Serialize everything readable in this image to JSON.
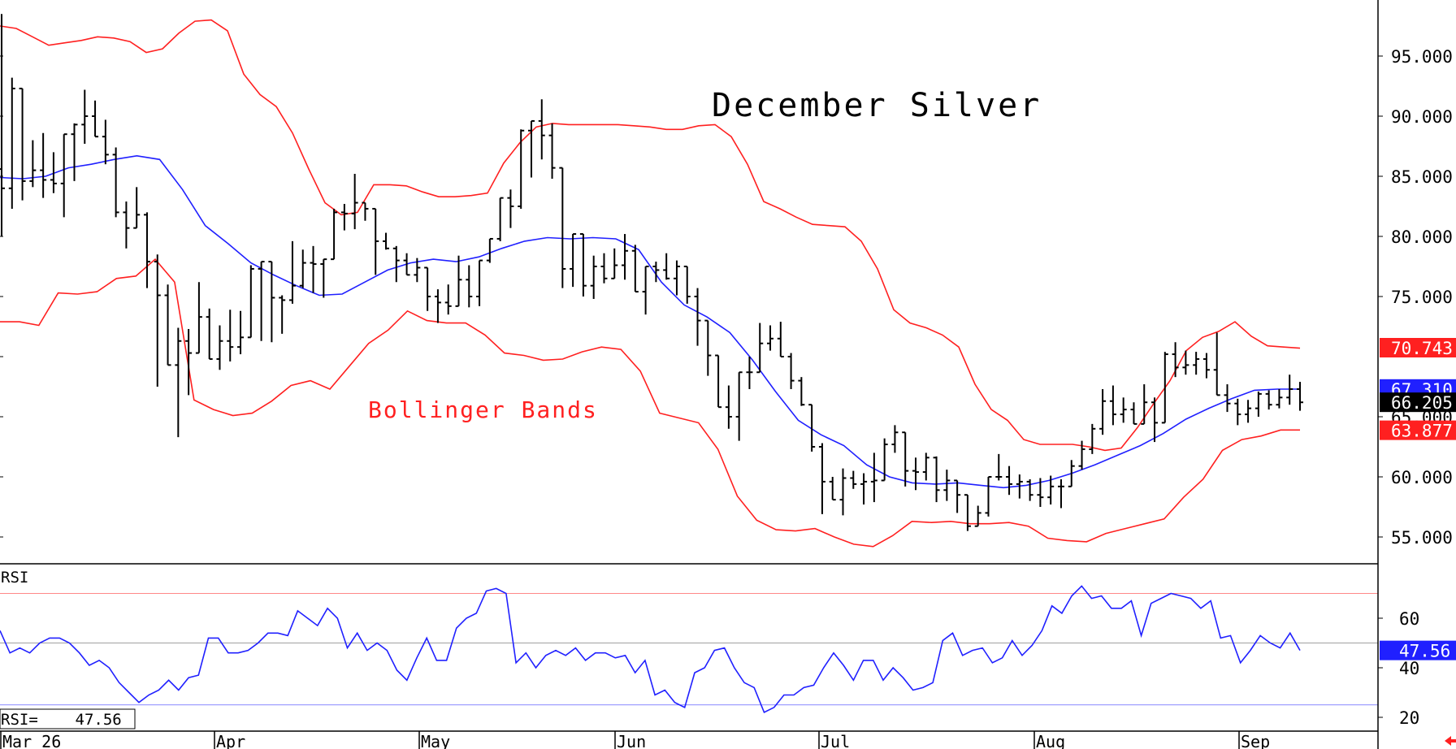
{
  "chart_data": [
    {
      "type": "ohlc",
      "title": "December Silver",
      "annotation": "Bollinger Bands",
      "ylim": [
        52.5,
        99.5
      ],
      "yticks": [
        "95.000",
        "90.000",
        "85.000",
        "80.000",
        "75.000",
        "65.000",
        "60.000",
        "55.000"
      ],
      "grid": false,
      "x_labels": [
        "Mar 26",
        "Apr",
        "May",
        "Jun",
        "Jul",
        "Aug",
        "Sep"
      ],
      "value_tags": [
        {
          "label": "70.743",
          "value": 70.743,
          "color": "#ff2020"
        },
        {
          "label": "67.310",
          "value": 67.31,
          "color": "#2020ff"
        },
        {
          "label": "66.205",
          "value": 66.205,
          "color": "#000000"
        },
        {
          "label": "63.877",
          "value": 63.877,
          "color": "#ff2020"
        }
      ],
      "bars": [
        [
          85.6,
          98.5,
          80.0,
          84.0
        ],
        [
          84.0,
          93.2,
          82.3,
          92.3
        ],
        [
          92.3,
          91.8,
          83.0,
          84.6
        ],
        [
          84.6,
          88.0,
          84.1,
          85.5
        ],
        [
          85.5,
          88.6,
          83.2,
          84.7
        ],
        [
          84.7,
          87.0,
          83.6,
          84.4
        ],
        [
          84.4,
          86.7,
          81.6,
          88.5
        ],
        [
          88.5,
          89.4,
          84.6,
          89.3
        ],
        [
          89.3,
          92.2,
          87.7,
          90.0
        ],
        [
          90.0,
          91.3,
          88.4,
          88.3
        ],
        [
          88.3,
          89.7,
          86.0,
          86.8
        ],
        [
          86.8,
          87.4,
          81.6,
          82.0
        ],
        [
          82.0,
          82.9,
          79.0,
          80.7
        ],
        [
          80.7,
          84.1,
          80.8,
          81.8
        ],
        [
          81.8,
          82.0,
          75.7,
          77.9
        ],
        [
          77.9,
          78.5,
          67.5,
          75.1
        ],
        [
          75.1,
          76.0,
          70.0,
          69.3
        ],
        [
          69.3,
          72.4,
          63.3,
          71.3
        ],
        [
          71.3,
          72.3,
          66.8,
          70.3
        ],
        [
          70.3,
          76.2,
          72.3,
          73.3
        ],
        [
          73.3,
          74.0,
          71.9,
          69.8
        ],
        [
          69.8,
          72.6,
          68.9,
          71.3
        ],
        [
          71.3,
          73.9,
          69.6,
          70.8
        ],
        [
          70.8,
          73.8,
          70.2,
          71.6
        ],
        [
          71.6,
          77.6,
          72.2,
          77.3
        ],
        [
          77.3,
          77.9,
          71.3,
          77.9
        ],
        [
          77.9,
          77.6,
          71.2,
          74.9
        ],
        [
          74.9,
          75.1,
          71.9,
          74.7
        ],
        [
          74.7,
          79.6,
          74.4,
          75.9
        ],
        [
          75.9,
          78.9,
          75.7,
          77.8
        ],
        [
          77.8,
          79.2,
          75.3,
          77.7
        ],
        [
          77.7,
          78.0,
          74.9,
          78.1
        ],
        [
          78.1,
          82.3,
          78.1,
          82.0
        ],
        [
          82.0,
          82.7,
          80.5,
          81.9
        ],
        [
          81.9,
          85.2,
          80.6,
          82.8
        ],
        [
          82.8,
          82.8,
          81.3,
          82.3
        ],
        [
          82.3,
          81.9,
          76.8,
          79.6
        ],
        [
          79.6,
          80.3,
          78.9,
          79.0
        ],
        [
          79.0,
          79.2,
          76.2,
          78.0
        ],
        [
          78.0,
          78.6,
          77.0,
          76.8
        ],
        [
          76.8,
          78.2,
          76.2,
          77.4
        ],
        [
          77.4,
          76.5,
          73.8,
          75.0
        ],
        [
          75.0,
          75.6,
          72.8,
          74.5
        ],
        [
          74.5,
          76.0,
          73.5,
          74.2
        ],
        [
          74.2,
          78.4,
          74.2,
          76.4
        ],
        [
          76.4,
          77.6,
          74.1,
          75.0
        ],
        [
          75.0,
          76.4,
          74.2,
          78.0
        ],
        [
          78.0,
          79.8,
          77.8,
          79.8
        ],
        [
          79.8,
          82.3,
          79.6,
          83.2
        ],
        [
          83.2,
          83.9,
          80.7,
          82.5
        ],
        [
          82.5,
          88.9,
          82.3,
          88.8
        ],
        [
          88.8,
          89.6,
          84.9,
          89.6
        ],
        [
          89.6,
          91.4,
          86.4,
          88.4
        ],
        [
          88.4,
          89.4,
          84.8,
          85.7
        ],
        [
          85.7,
          85.6,
          75.7,
          77.3
        ],
        [
          77.3,
          80.1,
          75.8,
          80.2
        ],
        [
          80.2,
          79.6,
          75.0,
          75.9
        ],
        [
          75.9,
          78.4,
          74.8,
          77.5
        ],
        [
          77.5,
          78.6,
          76.1,
          76.5
        ],
        [
          76.5,
          79.0,
          77.1,
          77.6
        ],
        [
          77.6,
          80.2,
          76.4,
          78.8
        ],
        [
          78.8,
          79.3,
          76.7,
          75.4
        ],
        [
          75.4,
          77.5,
          73.5,
          77.5
        ],
        [
          77.5,
          77.9,
          76.2,
          77.2
        ],
        [
          77.2,
          78.6,
          76.4,
          76.5
        ],
        [
          76.5,
          78.0,
          75.1,
          77.5
        ],
        [
          77.5,
          76.8,
          74.4,
          75.0
        ],
        [
          75.0,
          75.7,
          70.9,
          73.0
        ],
        [
          73.0,
          69.3,
          68.4,
          70.1
        ],
        [
          70.1,
          69.6,
          66.0,
          65.8
        ],
        [
          65.8,
          67.6,
          64.0,
          65.0
        ],
        [
          65.0,
          67.3,
          63.0,
          68.7
        ],
        [
          68.7,
          70.0,
          67.3,
          68.7
        ],
        [
          68.7,
          72.8,
          71.0,
          71.1
        ],
        [
          71.1,
          72.6,
          70.5,
          71.5
        ],
        [
          71.5,
          72.9,
          70.9,
          70.0
        ],
        [
          70.0,
          70.3,
          67.3,
          68.0
        ],
        [
          68.0,
          68.3,
          65.9,
          66.0
        ],
        [
          66.0,
          65.2,
          62.1,
          62.5
        ],
        [
          62.5,
          62.8,
          56.9,
          59.6
        ],
        [
          59.6,
          60.0,
          58.5,
          58.1
        ],
        [
          58.1,
          60.7,
          56.8,
          59.9
        ],
        [
          59.9,
          60.5,
          59.0,
          59.4
        ],
        [
          59.4,
          60.3,
          57.7,
          59.6
        ],
        [
          59.6,
          62.0,
          57.9,
          59.7
        ],
        [
          59.7,
          63.2,
          60.0,
          62.7
        ],
        [
          62.7,
          64.3,
          62.0,
          63.7
        ],
        [
          63.7,
          62.1,
          59.2,
          60.5
        ],
        [
          60.5,
          61.6,
          58.9,
          60.4
        ],
        [
          60.4,
          62.0,
          59.7,
          61.6
        ],
        [
          61.6,
          61.7,
          57.9,
          58.9
        ],
        [
          58.9,
          60.6,
          58.0,
          59.7
        ],
        [
          59.7,
          59.2,
          57.0,
          58.5
        ],
        [
          58.5,
          57.8,
          55.5,
          55.9
        ],
        [
          55.9,
          57.6,
          56.2,
          57.0
        ],
        [
          57.0,
          57.8,
          56.7,
          60.0
        ],
        [
          60.0,
          61.9,
          59.7,
          60.0
        ],
        [
          60.0,
          60.9,
          58.5,
          59.4
        ],
        [
          59.4,
          60.2,
          58.2,
          59.6
        ],
        [
          59.6,
          59.8,
          58.0,
          58.5
        ],
        [
          58.5,
          59.9,
          57.5,
          58.3
        ],
        [
          58.3,
          60.1,
          57.7,
          59.2
        ],
        [
          59.2,
          59.8,
          57.4,
          59.2
        ],
        [
          59.2,
          61.4,
          59.4,
          60.9
        ],
        [
          60.9,
          63.0,
          60.6,
          62.3
        ],
        [
          62.3,
          64.4,
          61.9,
          64.0
        ],
        [
          64.0,
          67.3,
          63.5,
          66.3
        ],
        [
          66.3,
          67.6,
          64.3,
          65.2
        ],
        [
          65.2,
          66.6,
          64.5,
          65.6
        ],
        [
          65.6,
          66.2,
          65.0,
          64.4
        ],
        [
          64.4,
          67.7,
          66.2,
          66.2
        ],
        [
          66.2,
          66.6,
          62.9,
          64.5
        ],
        [
          64.5,
          70.4,
          64.8,
          70.2
        ],
        [
          70.2,
          71.2,
          68.3,
          69.1
        ],
        [
          69.1,
          70.5,
          68.5,
          69.3
        ],
        [
          69.3,
          70.4,
          68.5,
          69.8
        ],
        [
          69.8,
          70.3,
          68.2,
          68.9
        ],
        [
          68.9,
          72.0,
          68.4,
          66.8
        ],
        [
          66.8,
          67.7,
          65.4,
          66.1
        ],
        [
          66.1,
          66.5,
          64.3,
          65.2
        ],
        [
          65.2,
          66.4,
          64.5,
          65.7
        ],
        [
          65.7,
          67.1,
          65.0,
          66.9
        ],
        [
          66.9,
          67.2,
          65.6,
          66.0
        ],
        [
          66.0,
          67.3,
          65.7,
          66.6
        ],
        [
          66.6,
          68.5,
          66.0,
          67.3
        ],
        [
          67.3,
          67.9,
          65.5,
          66.2
        ]
      ],
      "series": [
        {
          "name": "",
          "color": "#ff2020",
          "values": [
            97.5,
            97.3,
            96.6,
            95.9,
            96.1,
            96.3,
            96.6,
            96.5,
            96.2,
            95.3,
            95.6,
            96.9,
            97.9,
            98.0,
            97.1,
            93.5,
            91.8,
            90.8,
            88.6,
            85.6,
            82.8,
            81.8,
            82.0,
            84.3,
            84.3,
            84.2,
            83.7,
            83.3,
            83.3,
            83.4,
            83.6,
            86.1,
            87.8,
            89.1,
            89.4,
            89.3,
            89.3,
            89.3,
            89.3,
            89.2,
            89.1,
            88.9,
            88.9,
            89.2,
            89.3,
            88.3,
            86.0,
            82.9,
            82.3,
            81.6,
            81.0,
            80.9,
            80.8,
            79.6,
            77.3,
            73.9,
            72.8,
            72.4,
            71.8,
            70.8,
            67.7,
            65.6,
            64.7,
            63.1,
            62.7,
            62.7,
            62.7,
            62.5,
            62.2,
            62.4,
            64.1,
            66.1,
            68.0,
            70.5,
            71.6,
            72.1,
            72.9,
            71.7,
            70.9,
            70.8,
            70.7
          ]
        },
        {
          "name": "",
          "color": "#2020ff",
          "values": [
            84.9,
            84.8,
            85.0,
            85.7,
            86.0,
            86.4,
            86.7,
            86.4,
            83.9,
            80.9,
            79.4,
            77.8,
            76.8,
            75.9,
            75.1,
            75.2,
            76.2,
            77.2,
            77.8,
            78.1,
            77.9,
            78.3,
            79.0,
            79.6,
            79.9,
            79.8,
            79.9,
            79.8,
            78.9,
            76.2,
            74.3,
            73.3,
            72.0,
            69.7,
            67.1,
            64.7,
            63.5,
            62.6,
            61.0,
            60.0,
            59.5,
            59.4,
            59.5,
            59.3,
            59.1,
            59.3,
            59.7,
            60.3,
            61.0,
            61.8,
            62.6,
            63.6,
            64.8,
            65.7,
            66.5,
            67.2,
            67.3,
            67.3
          ]
        },
        {
          "name": "",
          "color": "#ff2020",
          "values": [
            72.9,
            72.9,
            72.6,
            75.3,
            75.2,
            75.4,
            76.5,
            76.7,
            78.1,
            76.2,
            66.4,
            65.6,
            65.1,
            65.3,
            66.3,
            67.6,
            68.0,
            67.3,
            69.2,
            71.1,
            72.2,
            73.8,
            73.0,
            72.8,
            72.8,
            71.8,
            70.3,
            70.1,
            69.7,
            69.8,
            70.4,
            70.8,
            70.6,
            68.8,
            65.3,
            64.9,
            64.5,
            62.3,
            58.4,
            56.4,
            55.6,
            55.5,
            55.7,
            55.0,
            54.4,
            54.2,
            55.1,
            56.3,
            56.2,
            56.3,
            56.1,
            56.1,
            56.2,
            55.9,
            54.9,
            54.7,
            54.6,
            55.3,
            55.7,
            56.1,
            56.5,
            58.3,
            59.8,
            62.2,
            63.1,
            63.4,
            63.9,
            63.9
          ]
        }
      ]
    },
    {
      "type": "line",
      "label": "RSI",
      "readout": "RSI=    47.56",
      "value_tag": "47.56",
      "ylim": [
        14,
        74
      ],
      "yticks": [
        "60",
        "40",
        "20"
      ],
      "reference_lines": [
        {
          "value": 70,
          "color": "#ff6060"
        },
        {
          "value": 50,
          "color": "#808080"
        },
        {
          "value": 25,
          "color": "#6060ff"
        }
      ],
      "series": [
        {
          "name": "",
          "color": "#2020ff",
          "values": [
            55,
            46,
            48,
            46,
            50,
            52,
            52,
            50,
            46,
            41,
            43,
            40,
            34,
            30,
            26,
            29,
            31,
            35,
            31,
            36,
            37,
            52,
            52,
            46,
            46,
            47,
            50,
            54,
            54,
            53,
            63,
            60,
            57,
            64,
            60,
            48,
            54,
            47,
            50,
            47,
            39,
            35,
            44,
            52,
            43,
            43,
            56,
            60,
            62,
            71,
            72,
            70,
            42,
            46,
            40,
            45,
            47,
            45,
            48,
            43,
            46,
            46,
            44,
            45,
            38,
            43,
            29,
            31,
            26,
            24,
            38,
            40,
            47,
            48,
            40,
            34,
            32,
            22,
            24,
            29,
            29,
            32,
            33,
            40,
            46,
            41,
            35,
            43,
            43,
            35,
            40,
            36,
            31,
            32,
            34,
            51,
            54,
            45,
            47,
            48,
            42,
            44,
            51,
            45,
            49,
            55,
            65,
            62,
            69,
            73,
            68,
            69,
            64,
            64,
            67,
            53,
            66,
            68,
            70,
            69,
            68,
            64,
            67,
            52,
            53,
            42,
            47,
            53,
            50,
            48,
            54,
            47
          ]
        }
      ]
    }
  ]
}
